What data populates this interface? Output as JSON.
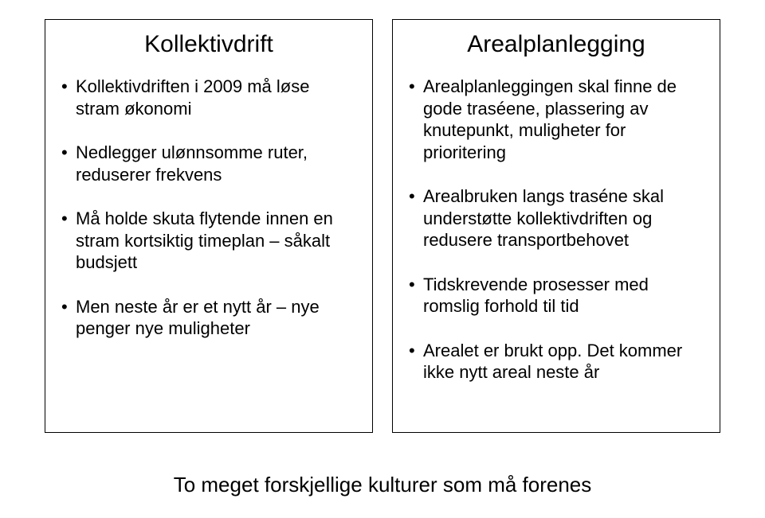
{
  "left": {
    "title": "Kollektivdrift",
    "items": [
      "Kollektivdriften i 2009 må løse stram økonomi",
      "Nedlegger ulønnsomme ruter, reduserer frekvens",
      "Må holde skuta flytende innen en stram kortsiktig timeplan – såkalt budsjett",
      "Men neste år er et nytt år – nye penger nye muligheter"
    ]
  },
  "right": {
    "title": "Arealplanlegging",
    "items": [
      "Arealplanleggingen skal finne de gode traséene, plassering av knutepunkt, muligheter for prioritering",
      "Arealbruken langs traséne skal understøtte kollektivdriften og redusere transportbehovet",
      "Tidskrevende prosesser med romslig forhold til tid",
      "Arealet er brukt opp. Det kommer ikke nytt areal neste år"
    ]
  },
  "footer": "To meget forskjellige kulturer som må forenes"
}
